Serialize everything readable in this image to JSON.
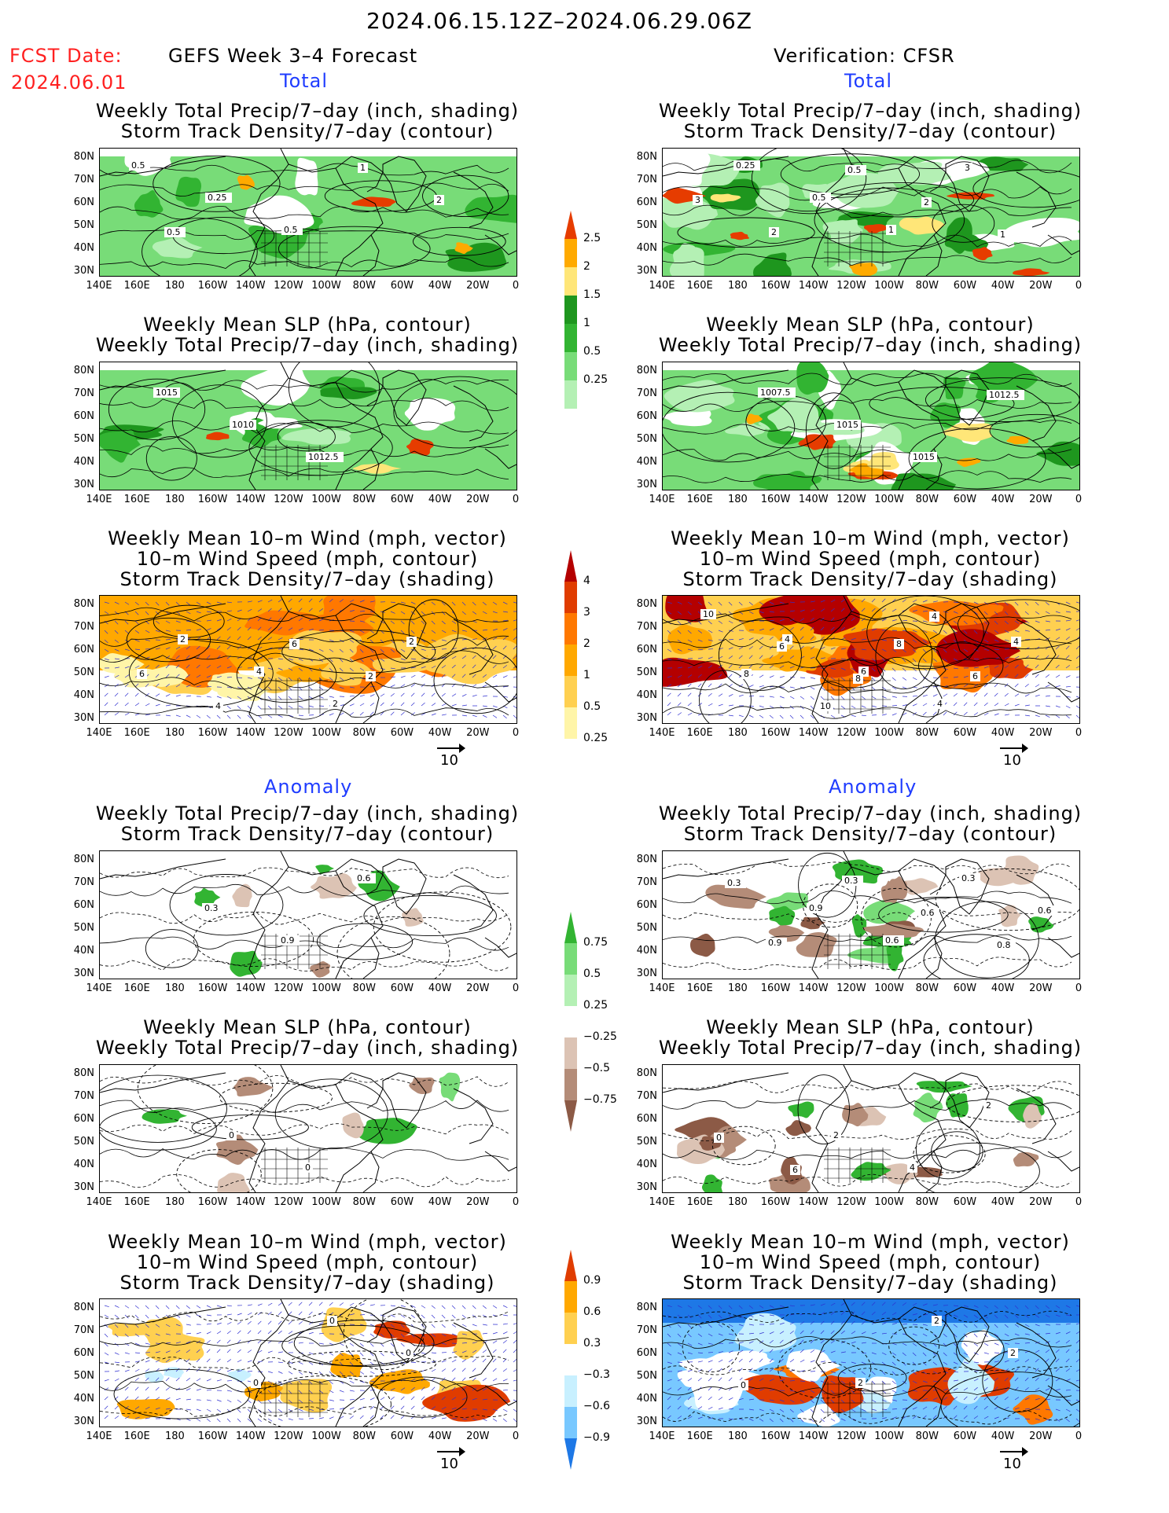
{
  "header": {
    "date_range": "2024.06.15.12Z–2024.06.29.06Z",
    "fcst_label": "FCST Date:",
    "fcst_date": "2024.06.01",
    "left_title": "GEFS Week 3–4 Forecast",
    "right_title": "Verification: CFSR",
    "total_label": "Total",
    "anomaly_label": "Anomaly"
  },
  "titles": {
    "precip_track": [
      "Weekly Total Precip/7–day (inch, shading)",
      "Storm Track Density/7–day (contour)"
    ],
    "slp_precip": [
      "Weekly Mean SLP (hPa, contour)",
      "Weekly Total Precip/7–day (inch, shading)"
    ],
    "wind": [
      "Weekly Mean 10–m Wind (mph, vector)",
      "10–m Wind Speed (mph, contour)",
      "Storm Track Density/7–day (shading)"
    ]
  },
  "axes": {
    "lat_labels": [
      "80N",
      "70N",
      "60N",
      "50N",
      "40N",
      "30N"
    ],
    "lon_labels": [
      "140E",
      "160E",
      "180",
      "160W",
      "140W",
      "120W",
      "100W",
      "80W",
      "60W",
      "40W",
      "20W",
      "0"
    ]
  },
  "colorbars": {
    "precip_total": [
      "2.5",
      "2",
      "1.5",
      "1",
      "0.5",
      "0.25"
    ],
    "track_total": [
      "4",
      "3",
      "2",
      "1",
      "0.5",
      "0.25"
    ],
    "precip_anom": [
      "0.75",
      "0.5",
      "0.25",
      "−0.25",
      "−0.5",
      "−0.75"
    ],
    "track_anom": [
      "0.9",
      "0.6",
      "0.3",
      "−0.3",
      "−0.6",
      "−0.9"
    ]
  },
  "vector_ref": "10",
  "contour_labels": {
    "fc_total_precip": [
      "0.5",
      "0.25",
      "0.5",
      "1",
      "2",
      "0.5"
    ],
    "obs_total_precip": [
      "0.25",
      "0.5",
      "1",
      "3",
      "3",
      "2",
      "0.5",
      "2",
      "1"
    ],
    "fc_total_slp": [
      "1015",
      "1010",
      "1012.5"
    ],
    "obs_total_slp": [
      "1007.5",
      "1015",
      "1015",
      "1012.5"
    ],
    "fc_total_wind": [
      "2",
      "4",
      "2",
      "2",
      "6",
      "4",
      "6",
      "2"
    ],
    "obs_total_wind": [
      "4",
      "6",
      "4",
      "4",
      "8",
      "10",
      "8",
      "6",
      "10",
      "6",
      "8",
      "4"
    ],
    "fc_anom_precip": [
      "0.3",
      "0.9",
      "0.6"
    ],
    "obs_anom_precip": [
      "0.9",
      "0.6",
      "0.3",
      "0.6",
      "0.9",
      "0.3",
      "0.6",
      "0.8",
      "0.3"
    ],
    "fc_anom_slp": [
      "0",
      "0"
    ],
    "obs_anom_slp": [
      "2",
      "4",
      "2",
      "0",
      "6"
    ],
    "fc_anom_wind": [
      "0",
      "0",
      "0"
    ],
    "obs_anom_wind": [
      "2",
      "2",
      "2",
      "0"
    ]
  },
  "colors": {
    "precip": [
      "#b4f0b4",
      "#78dc78",
      "#32b432",
      "#1e961e",
      "#ffe678",
      "#ffaa00",
      "#e63c00"
    ],
    "track": [
      "#fff5a8",
      "#ffd050",
      "#ffa800",
      "#ff7800",
      "#e03c00",
      "#b40000"
    ],
    "dry": [
      "#dcc3b4",
      "#b48c78",
      "#8c5a46"
    ],
    "cool": [
      "#c8f0ff",
      "#78c8ff",
      "#1e78e6"
    ]
  }
}
